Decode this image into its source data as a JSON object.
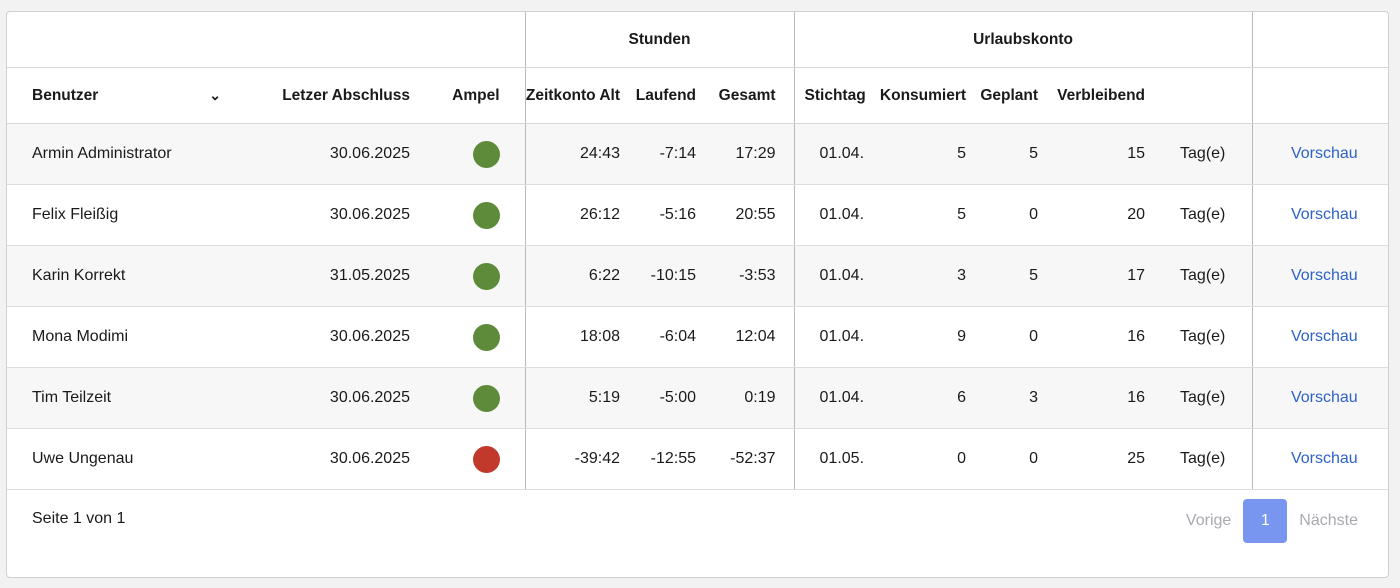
{
  "table": {
    "groups": {
      "stunden": "Stunden",
      "urlaubskonto": "Urlaubskonto"
    },
    "columns": {
      "benutzer": "Benutzer",
      "letzter_abschluss": "Letzer Abschluss",
      "ampel": "Ampel",
      "zeitkonto_alt": "Zeitkonto Alt",
      "laufend": "Laufend",
      "gesamt": "Gesamt",
      "stichtag": "Stichtag",
      "konsumiert": "Konsumiert",
      "geplant": "Geplant",
      "verbleibend": "Verbleibend"
    },
    "sort_icon": "chevron-down-icon",
    "colors": {
      "green": "#5e8b3a",
      "red": "#c0392b",
      "link": "#2d62c8"
    },
    "rows": [
      {
        "benutzer": "Armin Administrator",
        "abschluss": "30.06.2025",
        "ampel": "green",
        "zeitkonto_alt": "24:43",
        "laufend": "-7:14",
        "gesamt": "17:29",
        "stichtag": "01.04.",
        "konsumiert": "5",
        "geplant": "5",
        "verbleibend": "15",
        "einheit": "Tag(e)",
        "action": "Vorschau"
      },
      {
        "benutzer": "Felix Fleißig",
        "abschluss": "30.06.2025",
        "ampel": "green",
        "zeitkonto_alt": "26:12",
        "laufend": "-5:16",
        "gesamt": "20:55",
        "stichtag": "01.04.",
        "konsumiert": "5",
        "geplant": "0",
        "verbleibend": "20",
        "einheit": "Tag(e)",
        "action": "Vorschau"
      },
      {
        "benutzer": "Karin Korrekt",
        "abschluss": "31.05.2025",
        "ampel": "green",
        "zeitkonto_alt": "6:22",
        "laufend": "-10:15",
        "gesamt": "-3:53",
        "stichtag": "01.04.",
        "konsumiert": "3",
        "geplant": "5",
        "verbleibend": "17",
        "einheit": "Tag(e)",
        "action": "Vorschau"
      },
      {
        "benutzer": "Mona Modimi",
        "abschluss": "30.06.2025",
        "ampel": "green",
        "zeitkonto_alt": "18:08",
        "laufend": "-6:04",
        "gesamt": "12:04",
        "stichtag": "01.04.",
        "konsumiert": "9",
        "geplant": "0",
        "verbleibend": "16",
        "einheit": "Tag(e)",
        "action": "Vorschau"
      },
      {
        "benutzer": "Tim Teilzeit",
        "abschluss": "30.06.2025",
        "ampel": "green",
        "zeitkonto_alt": "5:19",
        "laufend": "-5:00",
        "gesamt": "0:19",
        "stichtag": "01.04.",
        "konsumiert": "6",
        "geplant": "3",
        "verbleibend": "16",
        "einheit": "Tag(e)",
        "action": "Vorschau"
      },
      {
        "benutzer": "Uwe Ungenau",
        "abschluss": "30.06.2025",
        "ampel": "red",
        "zeitkonto_alt": "-39:42",
        "laufend": "-12:55",
        "gesamt": "-52:37",
        "stichtag": "01.05.",
        "konsumiert": "0",
        "geplant": "0",
        "verbleibend": "25",
        "einheit": "Tag(e)",
        "action": "Vorschau"
      }
    ]
  },
  "footer": {
    "page_info": "Seite 1 von 1",
    "prev": "Vorige",
    "current_page": "1",
    "next": "Nächste"
  }
}
